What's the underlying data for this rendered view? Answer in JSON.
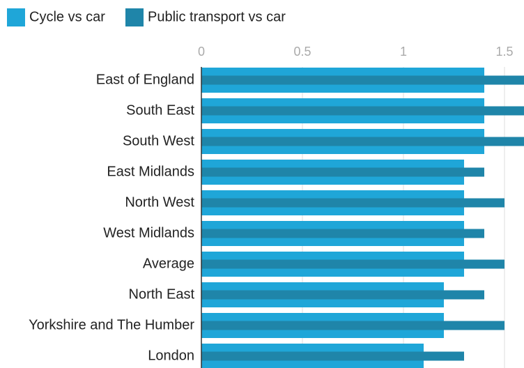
{
  "chart_data": {
    "type": "bar",
    "orientation": "horizontal",
    "categories": [
      "East of England",
      "South East",
      "South West",
      "East Midlands",
      "North West",
      "West Midlands",
      "Average",
      "North East",
      "Yorkshire and The Humber",
      "London"
    ],
    "series": [
      {
        "name": "Cycle vs car",
        "color": "#1fa6d8",
        "values": [
          1.4,
          1.4,
          1.4,
          1.3,
          1.3,
          1.3,
          1.3,
          1.2,
          1.2,
          1.1
        ]
      },
      {
        "name": "Public transport vs car",
        "color": "#1f85a9",
        "values": [
          1.7,
          1.7,
          1.7,
          1.4,
          1.5,
          1.4,
          1.5,
          1.4,
          1.5,
          1.3
        ]
      }
    ],
    "xlim": [
      0,
      1.6
    ],
    "xticks": [
      0,
      0.5,
      1,
      1.5
    ],
    "grid": true
  }
}
